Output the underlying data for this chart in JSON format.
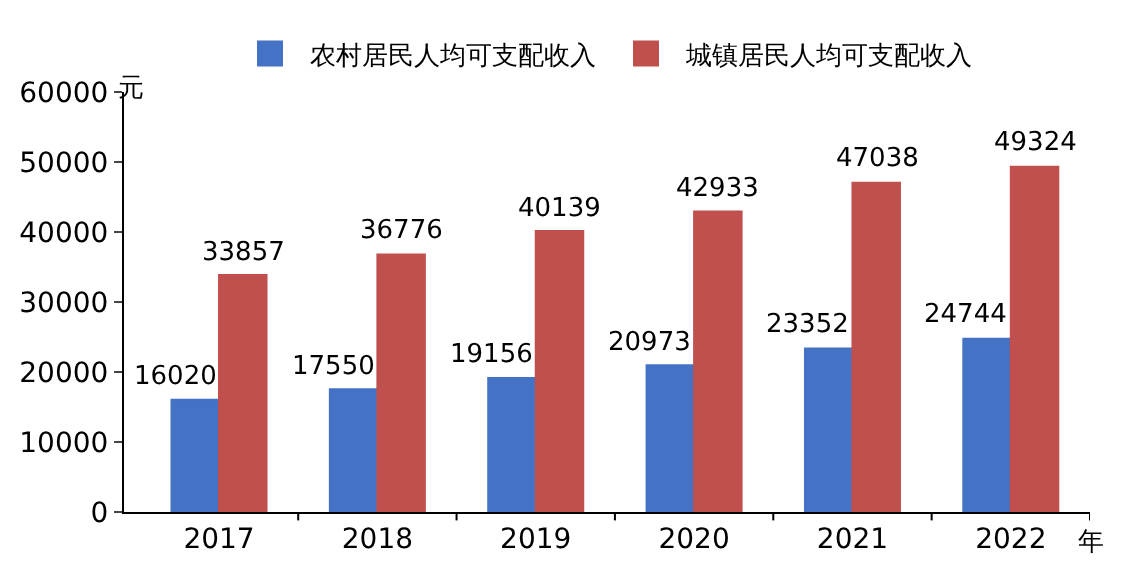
{
  "chart_data": {
    "type": "bar",
    "categories": [
      "2017",
      "2018",
      "2019",
      "2020",
      "2021",
      "2022"
    ],
    "xlabel": "年",
    "ylabel": "元",
    "series": [
      {
        "name": "农村居民人均可支配收入",
        "color": "#4472c4",
        "values": [
          16020,
          17550,
          19156,
          20973,
          23352,
          24744
        ]
      },
      {
        "name": "城镇居民人均可支配收入",
        "color": "#c0504d",
        "values": [
          33857,
          36776,
          40139,
          42933,
          47038,
          49324
        ]
      }
    ],
    "ylim": [
      0,
      60000
    ],
    "yticks": [
      0,
      10000,
      20000,
      30000,
      40000,
      50000,
      60000
    ],
    "grid": false,
    "legend": "top",
    "data_labels": true
  }
}
